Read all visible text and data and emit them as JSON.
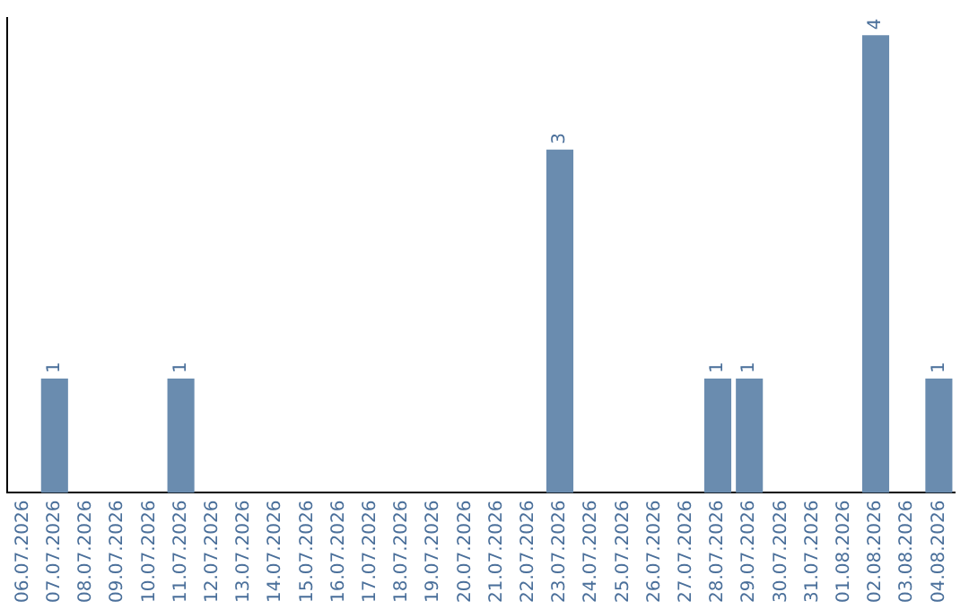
{
  "chart_data": {
    "type": "bar",
    "categories": [
      "06.07.2026",
      "07.07.2026",
      "08.07.2026",
      "09.07.2026",
      "10.07.2026",
      "11.07.2026",
      "12.07.2026",
      "13.07.2026",
      "14.07.2026",
      "15.07.2026",
      "16.07.2026",
      "17.07.2026",
      "18.07.2026",
      "19.07.2026",
      "20.07.2026",
      "21.07.2026",
      "22.07.2026",
      "23.07.2026",
      "24.07.2026",
      "25.07.2026",
      "26.07.2026",
      "27.07.2026",
      "28.07.2026",
      "29.07.2026",
      "30.07.2026",
      "31.07.2026",
      "01.08.2026",
      "02.08.2026",
      "03.08.2026",
      "04.08.2026"
    ],
    "values": [
      0,
      1,
      0,
      0,
      0,
      1,
      0,
      0,
      0,
      0,
      0,
      0,
      0,
      0,
      0,
      0,
      0,
      3,
      0,
      0,
      0,
      0,
      1,
      1,
      0,
      0,
      0,
      4,
      0,
      1
    ],
    "value_labels": [
      null,
      "1",
      null,
      null,
      null,
      "1",
      null,
      null,
      null,
      null,
      null,
      null,
      null,
      null,
      null,
      null,
      null,
      "3",
      null,
      null,
      null,
      null,
      "1",
      "1",
      null,
      null,
      null,
      "4",
      null,
      "1"
    ],
    "color": "#6a8caf",
    "ylim": [
      0,
      4.15
    ],
    "grid": false,
    "legend": false,
    "tick_labels": "x"
  }
}
